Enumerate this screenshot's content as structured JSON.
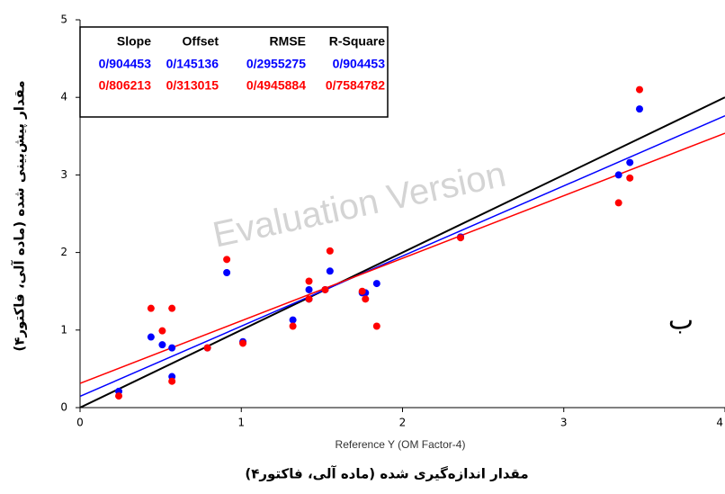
{
  "chart_data": {
    "type": "scatter",
    "y_label": "مقدار پیش‌بینی شده (ماده آلی، فاکتور۴)",
    "x_label": "مقدار اندازه‌گیری شده (ماده آلی، فاکتور۴)",
    "x_axis_caption": "Reference Y (OM     Factor-4)",
    "watermark": "Evaluation Version",
    "annotation": "ب",
    "xlim": [
      0,
      4
    ],
    "xticks": [
      0,
      1,
      2,
      3,
      4
    ],
    "ylim": [
      0,
      5
    ],
    "yticks": [
      0,
      1,
      2,
      3,
      4,
      5
    ],
    "identity_line": true,
    "x": [
      0.24,
      0.44,
      0.51,
      0.57,
      0.57,
      0.79,
      0.91,
      1.01,
      1.32,
      1.42,
      1.42,
      1.52,
      1.55,
      1.75,
      1.77,
      1.84,
      2.36,
      3.34,
      3.41,
      3.47
    ],
    "series": [
      {
        "color": "#0000ff",
        "values": [
          0.21,
          0.91,
          0.81,
          0.77,
          0.4,
          0.77,
          1.74,
          0.85,
          1.13,
          1.52,
          1.4,
          1.52,
          1.76,
          1.48,
          1.48,
          1.6,
          2.2,
          3.0,
          3.16,
          3.85
        ]
      },
      {
        "color": "#ff0000",
        "values": [
          0.15,
          1.28,
          0.99,
          1.28,
          0.34,
          0.77,
          1.91,
          0.83,
          1.05,
          1.63,
          1.4,
          1.52,
          2.02,
          1.5,
          1.4,
          1.05,
          2.19,
          2.64,
          2.96,
          4.1
        ]
      }
    ],
    "stats_headers": [
      "Slope",
      "Offset",
      "RMSE",
      "R-Square"
    ],
    "fits": [
      {
        "color": "#0000ff",
        "slope": 0.904453,
        "offset": 0.145136,
        "value_labels": [
          "0/904453",
          "0/145136",
          "0/2955275",
          "0/904453"
        ]
      },
      {
        "color": "#ff0000",
        "slope": 0.806213,
        "offset": 0.313015,
        "value_labels": [
          "0/806213",
          "0/313015",
          "0/4945884",
          "0/7584782"
        ]
      }
    ]
  }
}
